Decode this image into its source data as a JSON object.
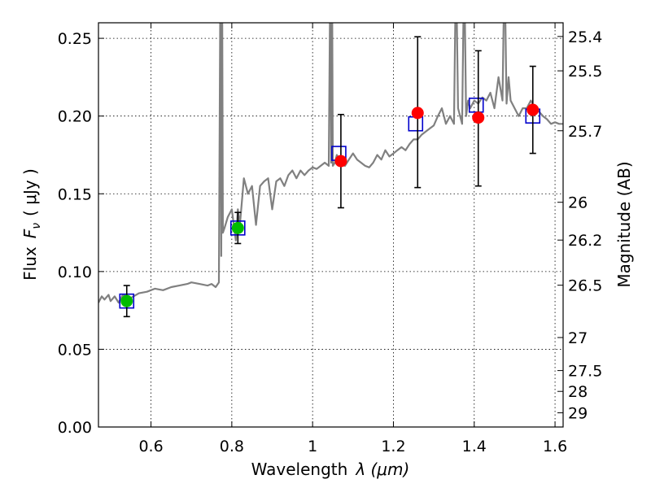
{
  "chart_data": {
    "type": "scatter",
    "title": "",
    "xlabel": "Wavelength",
    "xlabel_symbol": "λ (μm)",
    "ylabel": "Flux",
    "ylabel_symbol": "F",
    "ylabel_subscript": "ν",
    "ylabel_unit": "( μJy )",
    "y2label": "Magnitude (AB)",
    "xlim": [
      0.47,
      1.62
    ],
    "ylim": [
      0.0,
      0.26
    ],
    "grid": true,
    "xticks": [
      0.6,
      0.8,
      1.0,
      1.2,
      1.4,
      1.6
    ],
    "xtick_labels": [
      "0.6",
      "0.8",
      "1",
      "1.2",
      "1.4",
      "1.6"
    ],
    "yticks": [
      0.0,
      0.05,
      0.1,
      0.15,
      0.2,
      0.25
    ],
    "ytick_labels": [
      "0.00",
      "0.05",
      "0.10",
      "0.15",
      "0.20",
      "0.25"
    ],
    "mag_ticks": [
      {
        "label": "25.4",
        "mag": 25.4
      },
      {
        "label": "25.5",
        "mag": 25.5
      },
      {
        "label": "25.7",
        "mag": 25.7
      },
      {
        "label": "26",
        "mag": 26.0
      },
      {
        "label": "26.2",
        "mag": 26.2
      },
      {
        "label": "26.5",
        "mag": 26.5
      },
      {
        "label": "27",
        "mag": 27.0
      },
      {
        "label": "27.5",
        "mag": 27.5
      },
      {
        "label": "28",
        "mag": 28.0
      },
      {
        "label": "29",
        "mag": 29.0
      }
    ],
    "series": [
      {
        "name": "model spectrum",
        "kind": "line",
        "color": "#808080",
        "x": [
          0.47,
          0.478,
          0.485,
          0.495,
          0.5,
          0.51,
          0.52,
          0.53,
          0.55,
          0.57,
          0.59,
          0.61,
          0.63,
          0.65,
          0.67,
          0.69,
          0.7,
          0.72,
          0.74,
          0.75,
          0.76,
          0.768,
          0.772,
          0.774,
          0.776,
          0.778,
          0.782,
          0.79,
          0.8,
          0.805,
          0.81,
          0.815,
          0.82,
          0.83,
          0.84,
          0.85,
          0.86,
          0.87,
          0.88,
          0.89,
          0.9,
          0.91,
          0.92,
          0.93,
          0.94,
          0.95,
          0.96,
          0.97,
          0.98,
          0.99,
          1.0,
          1.01,
          1.02,
          1.03,
          1.04,
          1.044,
          1.046,
          1.048,
          1.05,
          1.055,
          1.06,
          1.07,
          1.08,
          1.09,
          1.1,
          1.11,
          1.12,
          1.13,
          1.14,
          1.15,
          1.16,
          1.17,
          1.18,
          1.19,
          1.2,
          1.21,
          1.22,
          1.23,
          1.24,
          1.25,
          1.26,
          1.27,
          1.28,
          1.29,
          1.3,
          1.31,
          1.32,
          1.33,
          1.34,
          1.35,
          1.355,
          1.36,
          1.37,
          1.375,
          1.38,
          1.385,
          1.39,
          1.4,
          1.41,
          1.42,
          1.43,
          1.44,
          1.45,
          1.46,
          1.47,
          1.475,
          1.48,
          1.485,
          1.49,
          1.5,
          1.51,
          1.52,
          1.53,
          1.54,
          1.55,
          1.56,
          1.57,
          1.58,
          1.59,
          1.6,
          1.61,
          1.62
        ],
        "y": [
          0.08,
          0.084,
          0.082,
          0.085,
          0.081,
          0.084,
          0.08,
          0.085,
          0.083,
          0.086,
          0.087,
          0.089,
          0.088,
          0.09,
          0.091,
          0.092,
          0.093,
          0.092,
          0.091,
          0.092,
          0.09,
          0.093,
          0.3,
          0.11,
          0.3,
          0.125,
          0.128,
          0.135,
          0.14,
          0.13,
          0.12,
          0.14,
          0.13,
          0.16,
          0.15,
          0.155,
          0.13,
          0.155,
          0.158,
          0.16,
          0.14,
          0.158,
          0.16,
          0.155,
          0.162,
          0.165,
          0.16,
          0.165,
          0.162,
          0.165,
          0.167,
          0.166,
          0.168,
          0.17,
          0.168,
          0.3,
          0.17,
          0.3,
          0.168,
          0.17,
          0.175,
          0.17,
          0.168,
          0.172,
          0.176,
          0.172,
          0.17,
          0.168,
          0.167,
          0.17,
          0.175,
          0.172,
          0.178,
          0.174,
          0.176,
          0.178,
          0.18,
          0.178,
          0.182,
          0.185,
          0.185,
          0.188,
          0.19,
          0.192,
          0.194,
          0.2,
          0.205,
          0.195,
          0.2,
          0.195,
          0.3,
          0.205,
          0.195,
          0.3,
          0.2,
          0.21,
          0.205,
          0.21,
          0.208,
          0.212,
          0.21,
          0.215,
          0.205,
          0.225,
          0.21,
          0.3,
          0.208,
          0.225,
          0.21,
          0.205,
          0.2,
          0.205,
          0.205,
          0.21,
          0.205,
          0.203,
          0.2,
          0.198,
          0.195,
          0.196,
          0.195,
          0.195
        ]
      },
      {
        "name": "model photometry",
        "kind": "open-square",
        "color": "#0000cc",
        "x": [
          0.54,
          0.815,
          1.065,
          1.255,
          1.405,
          1.545
        ],
        "y": [
          0.081,
          0.128,
          0.176,
          0.195,
          0.207,
          0.2
        ]
      },
      {
        "name": "observed detections",
        "kind": "filled-circle",
        "color": "#ff0000",
        "x": [
          1.07,
          1.26,
          1.41,
          1.545
        ],
        "y": [
          0.171,
          0.202,
          0.199,
          0.204
        ]
      },
      {
        "name": "observed optical",
        "kind": "filled-circle",
        "color": "#00bb00",
        "x": [
          0.54,
          0.815
        ],
        "y": [
          0.081,
          0.128
        ]
      },
      {
        "name": "error bars",
        "kind": "errorbar",
        "color": "#000000",
        "x": [
          0.54,
          0.815,
          1.07,
          1.26,
          1.41,
          1.545
        ],
        "ylow": [
          0.071,
          0.118,
          0.141,
          0.154,
          0.155,
          0.176
        ],
        "yhigh": [
          0.091,
          0.138,
          0.201,
          0.251,
          0.242,
          0.232
        ]
      }
    ]
  }
}
